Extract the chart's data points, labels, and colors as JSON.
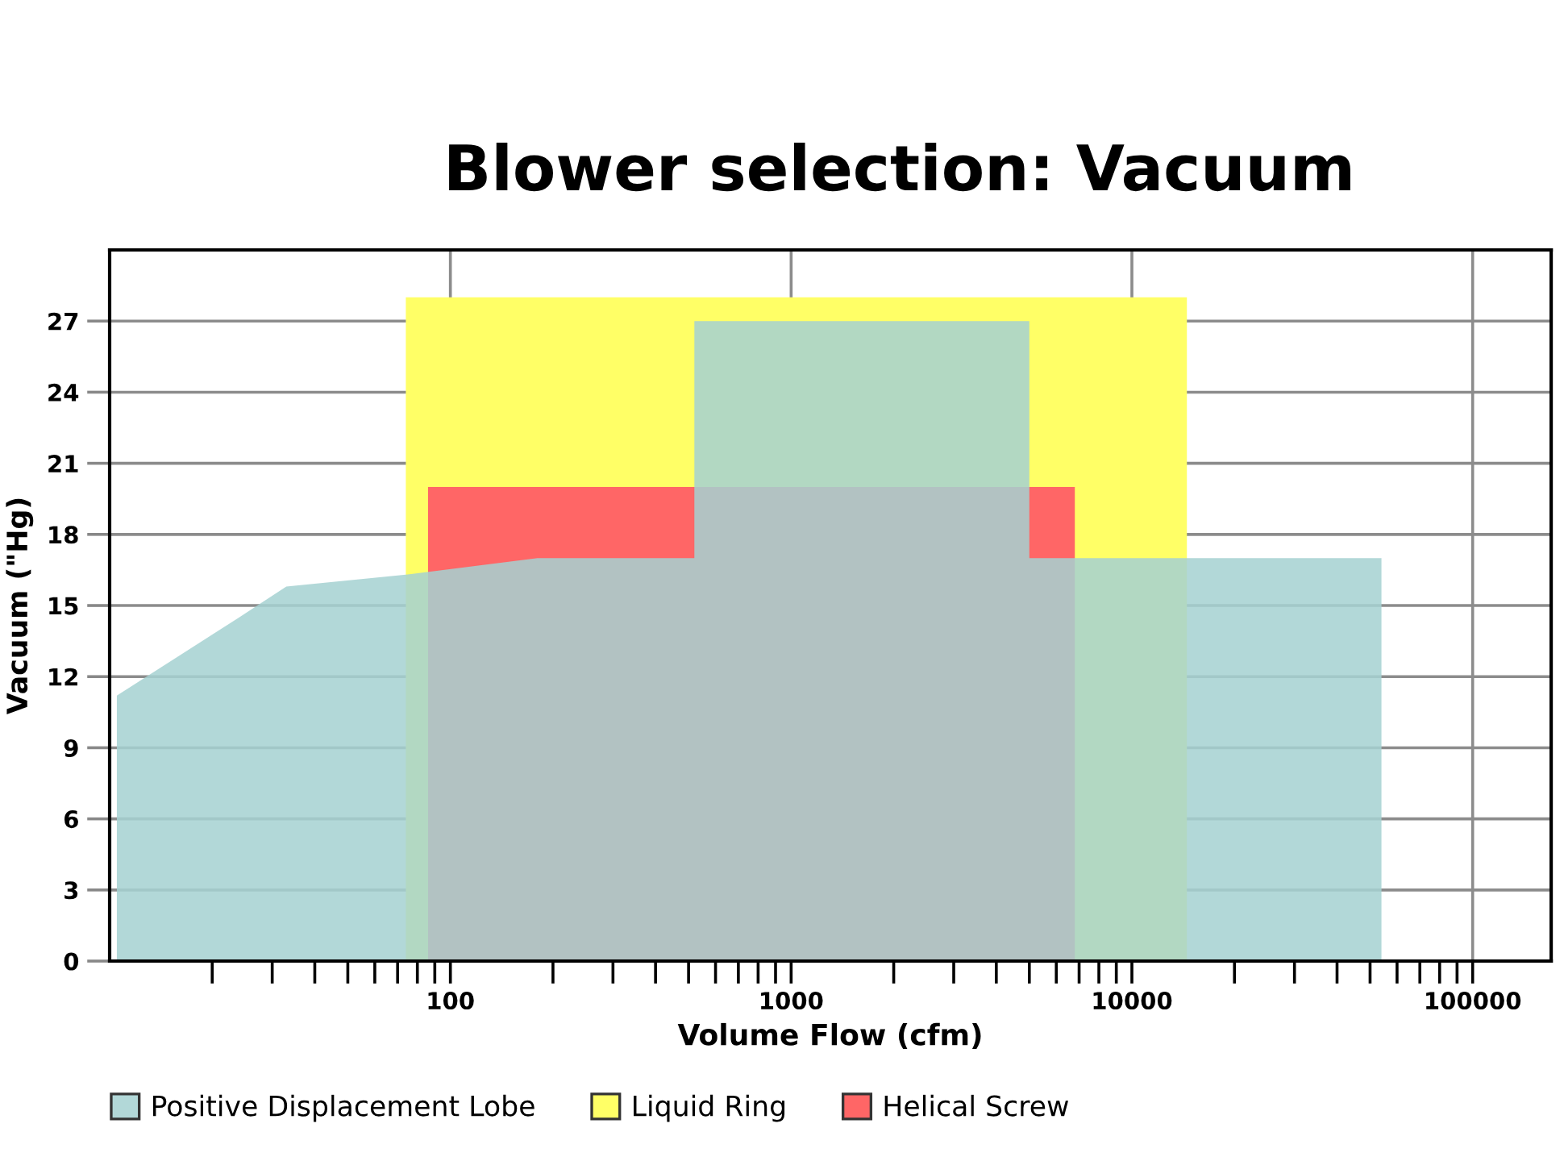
{
  "chart_data": {
    "type": "area",
    "title": "Blower selection: Vacuum",
    "xlabel": "Volume Flow (cfm)",
    "ylabel": "Vacuum (\"Hg)",
    "log": "x",
    "xlim": [
      10,
      170000
    ],
    "xticks": [
      {
        "value": 20,
        "label": null
      },
      {
        "value": 30,
        "label": null
      },
      {
        "value": 40,
        "label": null
      },
      {
        "value": 50,
        "label": null
      },
      {
        "value": 60,
        "label": null
      },
      {
        "value": 70,
        "label": null
      },
      {
        "value": 80,
        "label": null
      },
      {
        "value": 90,
        "label": null
      },
      100,
      {
        "value": 200,
        "label": null
      },
      {
        "value": 300,
        "label": null
      },
      {
        "value": 400,
        "label": null
      },
      {
        "value": 500,
        "label": null
      },
      {
        "value": 600,
        "label": null
      },
      {
        "value": 700,
        "label": null
      },
      {
        "value": 800,
        "label": null
      },
      {
        "value": 900,
        "label": null
      },
      1000,
      {
        "value": 2000,
        "label": null
      },
      {
        "value": 3000,
        "label": null
      },
      {
        "value": 4000,
        "label": null
      },
      {
        "value": 5000,
        "label": null
      },
      {
        "value": 6000,
        "label": null
      },
      {
        "value": 7000,
        "label": null
      },
      {
        "value": 8000,
        "label": null
      },
      {
        "value": 9000,
        "label": null
      },
      10000,
      {
        "value": 20000,
        "label": null
      },
      {
        "value": 30000,
        "label": null
      },
      {
        "value": 40000,
        "label": null
      },
      {
        "value": 50000,
        "label": null
      },
      {
        "value": 60000,
        "label": null
      },
      {
        "value": 70000,
        "label": null
      },
      {
        "value": 80000,
        "label": null
      },
      {
        "value": 90000,
        "label": null
      },
      100000
    ],
    "ylim": [
      0,
      30
    ],
    "yticks": [
      0,
      3,
      6,
      9,
      12,
      15,
      18,
      21,
      24,
      27
    ],
    "grid": true,
    "legend": "bottom",
    "series": [
      {
        "name": "Positive Displacement Lobe",
        "color": "#b2d8d8",
        "x": [
          10.5,
          24,
          33,
          74,
          180,
          520,
          520,
          5000,
          5000,
          54000
        ],
        "values": [
          11.2,
          14.5,
          15.8,
          16.3,
          17,
          17,
          27,
          27,
          17,
          17
        ]
      },
      {
        "name": "Liquid Ring",
        "color": "#ffff66",
        "x": [
          74,
          14500
        ],
        "values": [
          28,
          28
        ]
      },
      {
        "name": "Helical Screw",
        "color": "#ff6666",
        "x": [
          86,
          6800
        ],
        "values": [
          20,
          20
        ]
      }
    ]
  }
}
